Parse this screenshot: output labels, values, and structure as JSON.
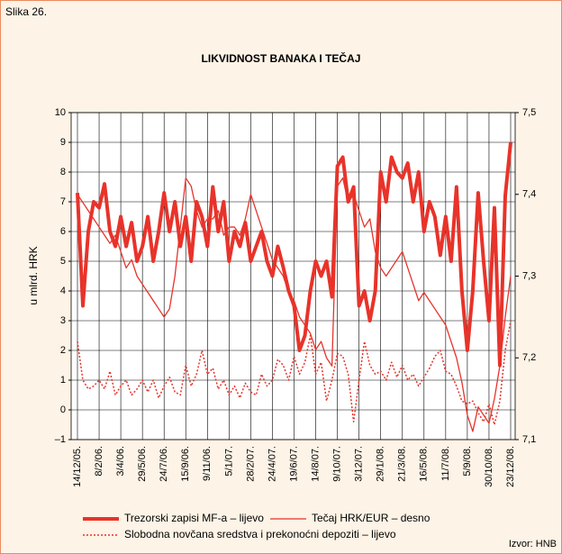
{
  "chart_data": {
    "type": "line",
    "figure_label": "Slika 26.",
    "title": "LIKVIDNOST BANAKA I TEČAJ",
    "y_label": "u mlrd. HRK",
    "source": "Izvor: HNB",
    "categories": [
      "14/12/05.",
      null,
      null,
      null,
      "8/2/06.",
      null,
      null,
      null,
      "3/4/06.",
      null,
      null,
      null,
      "29/5/06.",
      null,
      null,
      null,
      "24/7/06.",
      null,
      null,
      null,
      "15/9/06.",
      null,
      null,
      null,
      "9/11/06.",
      null,
      null,
      null,
      "5/1/07.",
      null,
      null,
      null,
      "28/2/07.",
      null,
      null,
      null,
      "24/4/07.",
      null,
      null,
      null,
      "19/6/07.",
      null,
      null,
      null,
      "14/8/07.",
      null,
      null,
      null,
      "9/10/07.",
      null,
      null,
      null,
      "3/12/07.",
      null,
      null,
      null,
      "29/1/08.",
      null,
      null,
      null,
      "21/3/08.",
      null,
      null,
      null,
      "16/5/08.",
      null,
      null,
      null,
      "11/7/08.",
      null,
      null,
      null,
      "5/9/08.",
      null,
      null,
      null,
      "30/10/08.",
      null,
      null,
      null,
      "23/12/08."
    ],
    "ylim": [
      -1,
      10
    ],
    "yticks": [
      {
        "value": -1,
        "label": "–1"
      },
      0,
      1,
      2,
      3,
      4,
      5,
      6,
      7,
      8,
      9,
      10
    ],
    "y2lim": [
      7.1,
      7.5
    ],
    "y2ticks": [
      {
        "value": 7.1,
        "label": "7,1"
      },
      {
        "value": 7.2,
        "label": "7,2"
      },
      {
        "value": 7.3,
        "label": "7,3"
      },
      {
        "value": 7.4,
        "label": "7,4"
      },
      {
        "value": 7.5,
        "label": "7,5"
      }
    ],
    "grid": true,
    "series": [
      {
        "name": "Trezorski zapisi MF-a – lijevo",
        "color": "#e8332a",
        "width": 4,
        "dash": "none",
        "values": [
          7.3,
          3.5,
          6,
          7,
          6.8,
          7.6,
          6,
          5.5,
          6.5,
          5.5,
          6.3,
          5,
          5.5,
          6.5,
          5,
          6,
          7.3,
          6,
          7,
          5.5,
          6.5,
          5,
          7,
          6.5,
          5.5,
          7.5,
          6,
          7,
          5,
          6,
          5.5,
          6.3,
          5,
          5.5,
          6,
          5,
          4.5,
          5.5,
          4.8,
          4,
          3.5,
          2,
          2.5,
          4,
          5,
          4.5,
          5,
          3.8,
          8.2,
          8.5,
          7,
          7.5,
          3.5,
          4,
          3,
          4,
          8,
          7,
          8.5,
          8,
          7.8,
          8.3,
          7,
          8,
          6,
          7,
          6.5,
          5.2,
          6.5,
          5,
          7.5,
          4,
          2,
          4,
          7.3,
          5,
          3,
          6.8,
          1.5,
          7.2,
          9
        ]
      },
      {
        "name": "Tečaj HRK/EUR – desno",
        "color": "#e8332a",
        "width": 1.3,
        "dash": "none",
        "axis": "y2",
        "values": [
          7.4,
          7.39,
          7.38,
          7.37,
          7.36,
          7.35,
          7.34,
          7.35,
          7.33,
          7.31,
          7.32,
          7.3,
          7.29,
          7.28,
          7.27,
          7.26,
          7.25,
          7.26,
          7.3,
          7.36,
          7.42,
          7.41,
          7.38,
          7.36,
          7.37,
          7.37,
          7.38,
          7.35,
          7.36,
          7.36,
          7.35,
          7.37,
          7.4,
          7.38,
          7.36,
          7.34,
          7.32,
          7.31,
          7.3,
          7.28,
          7.27,
          7.25,
          7.24,
          7.23,
          7.21,
          7.22,
          7.2,
          7.19,
          7.41,
          7.42,
          7.39,
          7.4,
          7.38,
          7.36,
          7.37,
          7.33,
          7.31,
          7.3,
          7.31,
          7.32,
          7.33,
          7.31,
          7.29,
          7.27,
          7.28,
          7.27,
          7.26,
          7.25,
          7.24,
          7.22,
          7.2,
          7.17,
          7.13,
          7.11,
          7.14,
          7.13,
          7.12,
          7.15,
          7.19,
          7.25,
          7.3
        ]
      },
      {
        "name": "Slobodna novčana sredstva i prekonoćni depoziti – lijevo",
        "color": "#e8332a",
        "width": 1.5,
        "dash": "2 2",
        "values": [
          2.3,
          1,
          0.7,
          0.8,
          1,
          0.7,
          1.3,
          0.5,
          0.8,
          1,
          0.5,
          0.7,
          1,
          0.6,
          1,
          0.4,
          0.8,
          1.1,
          0.6,
          0.5,
          1.5,
          0.8,
          1.2,
          2,
          1.2,
          1.4,
          0.7,
          1,
          0.5,
          0.8,
          0.4,
          0.9,
          0.6,
          0.5,
          1.2,
          0.8,
          1,
          1.7,
          1.5,
          1,
          1.8,
          1.2,
          1.6,
          2.5,
          1.2,
          1.6,
          0.3,
          1,
          1.9,
          1.8,
          1.2,
          -0.4,
          1,
          2.3,
          1.5,
          1.2,
          1.3,
          1,
          1.6,
          1.1,
          1.5,
          1,
          1.2,
          0.8,
          1.1,
          1.4,
          1.8,
          2,
          1.3,
          1.2,
          0.8,
          0.3,
          0.2,
          0.3,
          -0.1,
          -0.4,
          0.2,
          -0.5,
          0.3,
          2,
          3
        ]
      }
    ]
  }
}
